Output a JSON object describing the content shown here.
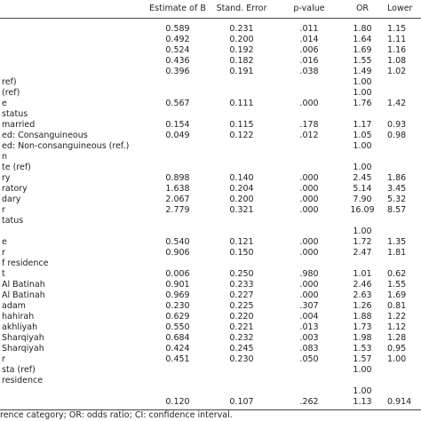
{
  "table": {
    "header": [
      "Estimate of B",
      "Stand. Error",
      "p-value",
      "OR",
      "Lower"
    ],
    "rows": [
      [
        null,
        "0.589",
        "0.231",
        ".011",
        "1.80",
        "1.15"
      ],
      [
        null,
        "0.492",
        "0.200",
        ".014",
        "1.64",
        "1.11"
      ],
      [
        null,
        "0.524",
        "0.192",
        ".006",
        "1.69",
        "1.16"
      ],
      [
        null,
        "0.436",
        "0.182",
        ".016",
        "1.55",
        "1.08"
      ],
      [
        null,
        "0.396",
        "0.191",
        ".038",
        "1.49",
        "1.02"
      ],
      [
        "ref)",
        null,
        null,
        null,
        "1.00",
        null
      ],
      [
        "(ref)",
        null,
        null,
        null,
        "1.00",
        null
      ],
      [
        "e",
        "0.567",
        "0.111",
        ".000",
        "1.76",
        "1.42"
      ],
      [
        "status",
        null,
        null,
        null,
        null,
        null
      ],
      [
        "married",
        "0.154",
        "0.115",
        ".178",
        "1.17",
        "0.93"
      ],
      [
        "ed: Consanguineous",
        "0.049",
        "0.122",
        ".012",
        "1.05",
        "0.98"
      ],
      [
        "ed: Non-consanguineous (ref.)",
        null,
        null,
        null,
        "1.00",
        null
      ],
      [
        "n",
        null,
        null,
        null,
        null,
        null
      ],
      [
        "te (ref)",
        null,
        null,
        null,
        "1.00",
        null
      ],
      [
        "ry",
        "0.898",
        "0.140",
        ".000",
        "2.45",
        "1.86"
      ],
      [
        "ratory",
        "1.638",
        "0.204",
        ".000",
        "5.14",
        "3.45"
      ],
      [
        "dary",
        "2.067",
        "0.200",
        ".000",
        "7.90",
        "5.32"
      ],
      [
        "r",
        "2.779",
        "0.321",
        ".000",
        "16.09",
        "8.57"
      ],
      [
        "tatus",
        null,
        null,
        null,
        null,
        null
      ],
      [
        null,
        null,
        null,
        null,
        "1.00",
        null
      ],
      [
        "e",
        "0.540",
        "0.121",
        ".000",
        "1.72",
        "1.35"
      ],
      [
        "r",
        "0.906",
        "0.150",
        ".000",
        "2.47",
        "1.81"
      ],
      [
        "f residence",
        null,
        null,
        null,
        null,
        null
      ],
      [
        "t",
        "0.006",
        "0.250",
        ".980",
        "1.01",
        "0.62"
      ],
      [
        "Al Batinah",
        "0.901",
        "0.233",
        ".000",
        "2.46",
        "1.55"
      ],
      [
        "Al Batinah",
        "0.969",
        "0.227",
        ".000",
        "2.63",
        "1.69"
      ],
      [
        "adam",
        "0.230",
        "0.225",
        ".307",
        "1.26",
        "0.81"
      ],
      [
        "hahirah",
        "0.629",
        "0.220",
        ".004",
        "1.88",
        "1.22"
      ],
      [
        "akhliyah",
        "0.550",
        "0.221",
        ".013",
        "1.73",
        "1.12"
      ],
      [
        "Sharqiyah",
        "0.684",
        "0.232",
        ".003",
        "1.98",
        "1.28"
      ],
      [
        "Sharqiyah",
        "0.424",
        "0.245",
        ".083",
        "1.53",
        "0.95"
      ],
      [
        "r",
        "0.451",
        "0.230",
        ".050",
        "1.57",
        "1.00"
      ],
      [
        "sta (ref)",
        null,
        null,
        null,
        "1.00",
        null
      ],
      [
        "residence",
        null,
        null,
        null,
        null,
        null
      ],
      [
        null,
        null,
        null,
        null,
        "1.00",
        null
      ],
      [
        null,
        "0.120",
        "0.107",
        ".262",
        "1.13",
        "0.914"
      ]
    ]
  },
  "footnote": "rence category; OR: odds ratio; CI: confidence interval."
}
